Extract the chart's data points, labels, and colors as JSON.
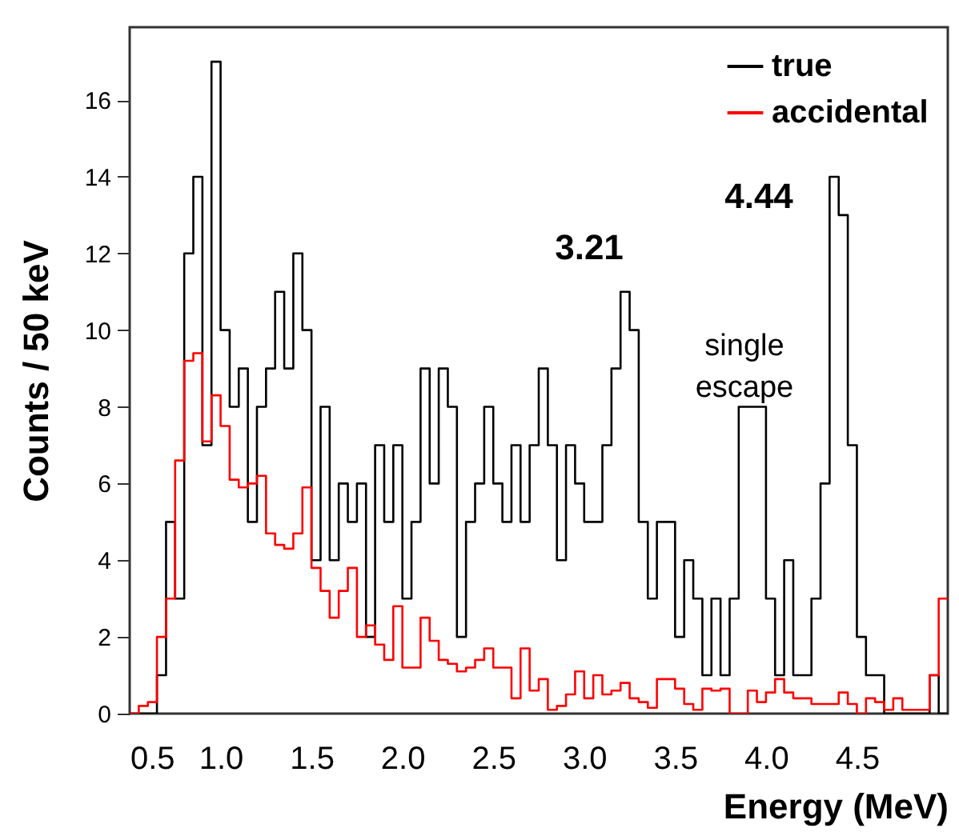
{
  "chart_data": {
    "type": "histogram",
    "xlabel": "Energy (MeV)",
    "ylabel": "Counts / 50 keV",
    "bins": [
      0.5,
      0.55,
      0.6,
      0.65,
      0.7,
      0.75,
      0.8,
      0.85,
      0.9,
      0.95,
      1.0,
      1.05,
      1.1,
      1.15,
      1.2,
      1.25,
      1.3,
      1.35,
      1.4,
      1.45,
      1.5,
      1.55,
      1.6,
      1.65,
      1.7,
      1.75,
      1.8,
      1.85,
      1.9,
      1.95,
      2.0,
      2.05,
      2.1,
      2.15,
      2.2,
      2.25,
      2.3,
      2.35,
      2.4,
      2.45,
      2.5,
      2.55,
      2.6,
      2.65,
      2.7,
      2.75,
      2.8,
      2.85,
      2.9,
      2.95,
      3.0,
      3.05,
      3.1,
      3.15,
      3.2,
      3.25,
      3.3,
      3.35,
      3.4,
      3.45,
      3.5,
      3.55,
      3.6,
      3.65,
      3.7,
      3.75,
      3.8,
      3.85,
      3.9,
      3.95,
      4.0,
      4.05,
      4.1,
      4.15,
      4.2,
      4.25,
      4.3,
      4.35,
      4.4,
      4.45,
      4.5,
      4.55,
      4.6,
      4.65,
      4.7,
      4.75,
      4.8,
      4.85,
      4.9,
      4.95,
      5.0
    ],
    "series": [
      {
        "name": "true",
        "color": "#000000",
        "values": [
          0,
          0,
          0,
          1,
          5,
          3,
          12,
          14,
          7,
          17,
          10,
          8,
          9,
          5,
          8,
          9,
          11,
          9,
          12,
          10,
          4,
          8,
          4,
          6,
          5,
          6,
          2,
          7,
          5,
          7,
          3,
          5,
          9,
          6,
          9,
          8,
          2,
          5,
          6,
          8,
          6,
          5,
          7,
          5,
          7,
          9,
          7,
          4,
          7,
          6,
          5,
          5,
          7,
          9,
          11,
          10,
          5,
          3,
          5,
          5,
          2,
          4,
          3,
          1,
          3,
          1,
          3,
          8,
          8,
          8,
          3,
          1,
          4,
          1,
          1,
          3,
          6,
          14,
          13,
          7,
          2,
          1,
          1,
          0,
          0,
          0,
          0,
          0,
          1,
          0
        ]
      },
      {
        "name": "accidental",
        "color": "#ff0000",
        "values": [
          0,
          0.2,
          0.3,
          2,
          3,
          6.6,
          9.2,
          9.4,
          7.1,
          8.3,
          7.5,
          6.1,
          5.9,
          6,
          6.2,
          4.7,
          4.4,
          4.3,
          4.7,
          5.9,
          3.8,
          3.2,
          2.5,
          3.2,
          3.8,
          2,
          2.3,
          1.8,
          1.4,
          2.8,
          1.2,
          1.2,
          2.5,
          1.9,
          1.4,
          1.3,
          1.1,
          1.2,
          1.4,
          1.7,
          1.2,
          1.2,
          0.4,
          1.7,
          0.6,
          0.9,
          0.1,
          0.2,
          0.5,
          1.1,
          0.4,
          1,
          0.5,
          0.6,
          0.8,
          0.4,
          0.3,
          0.15,
          0.9,
          0.9,
          0.65,
          0.25,
          0.1,
          0.65,
          0.6,
          0.65,
          0,
          0,
          0.6,
          0.3,
          0.55,
          0.9,
          0.55,
          0.4,
          0.4,
          0.25,
          0.25,
          0.25,
          0.55,
          0.25,
          0,
          0.4,
          0.3,
          0.1,
          0.4,
          0.1,
          0.1,
          0.1,
          1,
          3
        ]
      }
    ],
    "xlim": [
      0.5,
      5.0
    ],
    "xticks": [
      0.5,
      {
        "value": 1,
        "label": "1.0"
      },
      1.5,
      {
        "value": 2,
        "label": "2.0"
      },
      2.5,
      {
        "value": 3,
        "label": "3.0"
      },
      3.5,
      {
        "value": 4,
        "label": "4.0"
      },
      4.5
    ],
    "ylim": [
      0,
      17.9
    ],
    "yticks": [
      0,
      2,
      4,
      6,
      8,
      10,
      12,
      14,
      16
    ],
    "legend": "top right",
    "grid": false,
    "annotations": [
      "3.21",
      "4.44",
      "single escape"
    ]
  }
}
